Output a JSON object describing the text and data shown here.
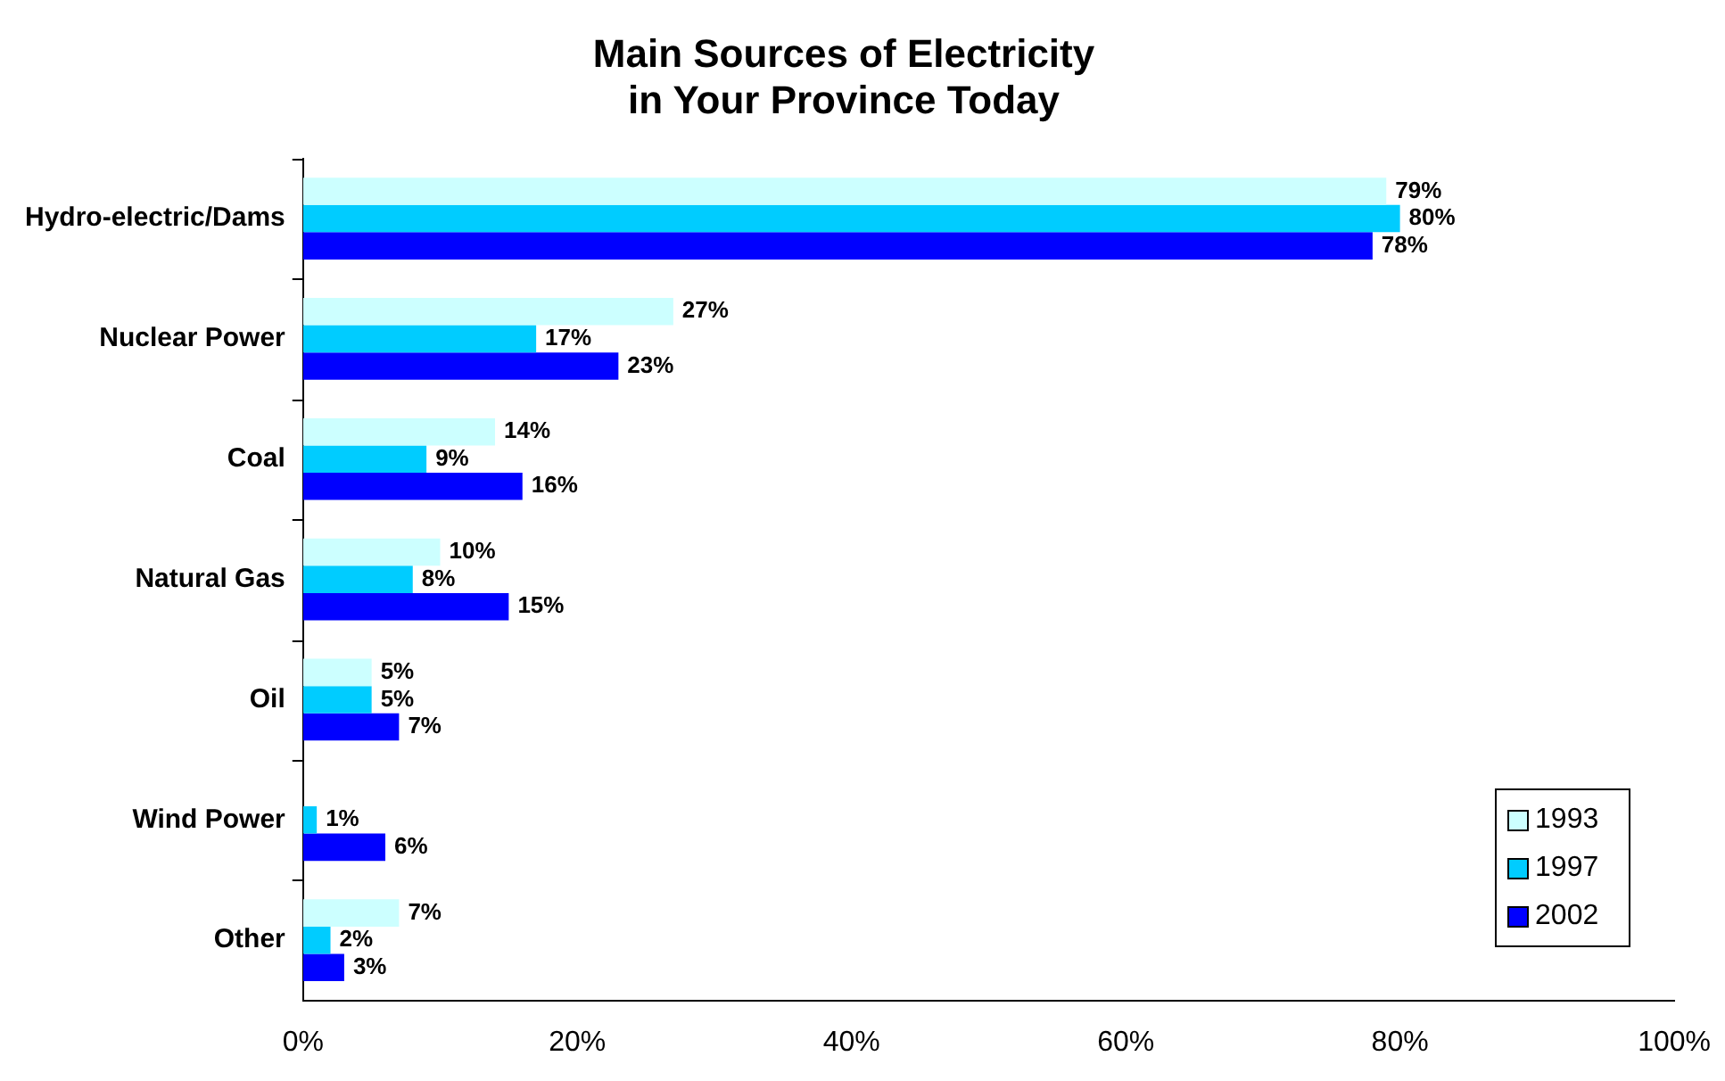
{
  "chart_data": {
    "type": "bar",
    "orientation": "horizontal",
    "title": [
      "Main Sources of Electricity",
      "in Your Province Today"
    ],
    "categories": [
      "Hydro-electric/Dams",
      "Nuclear Power",
      "Coal",
      "Natural Gas",
      "Oil",
      "Wind Power",
      "Other"
    ],
    "series": [
      {
        "name": "2002",
        "color": "#0000ff",
        "values": [
          78,
          23,
          16,
          15,
          7,
          6,
          3
        ],
        "value_labels": [
          "78%",
          "23%",
          "16%",
          "15%",
          "7%",
          "6%",
          "3%"
        ]
      },
      {
        "name": "1997",
        "color": "#00ccff",
        "values": [
          80,
          17,
          9,
          8,
          5,
          1,
          2
        ],
        "value_labels": [
          "80%",
          "17%",
          "9%",
          "8%",
          "5%",
          "1%",
          "2%"
        ]
      },
      {
        "name": "1993",
        "color": "#ccffff",
        "values": [
          79,
          27,
          14,
          10,
          5,
          null,
          7
        ],
        "value_labels": [
          "79%",
          "27%",
          "14%",
          "10%",
          "5%",
          null,
          "7%"
        ]
      }
    ],
    "xlim": [
      0,
      100
    ],
    "xticks": [
      {
        "value": 0,
        "label": "0%"
      },
      {
        "value": 20,
        "label": "20%"
      },
      {
        "value": 40,
        "label": "40%"
      },
      {
        "value": 60,
        "label": "60%"
      },
      {
        "value": 80,
        "label": "80%"
      },
      {
        "value": 100,
        "label": "100%"
      }
    ],
    "grid": false,
    "legend": "bottom right"
  }
}
